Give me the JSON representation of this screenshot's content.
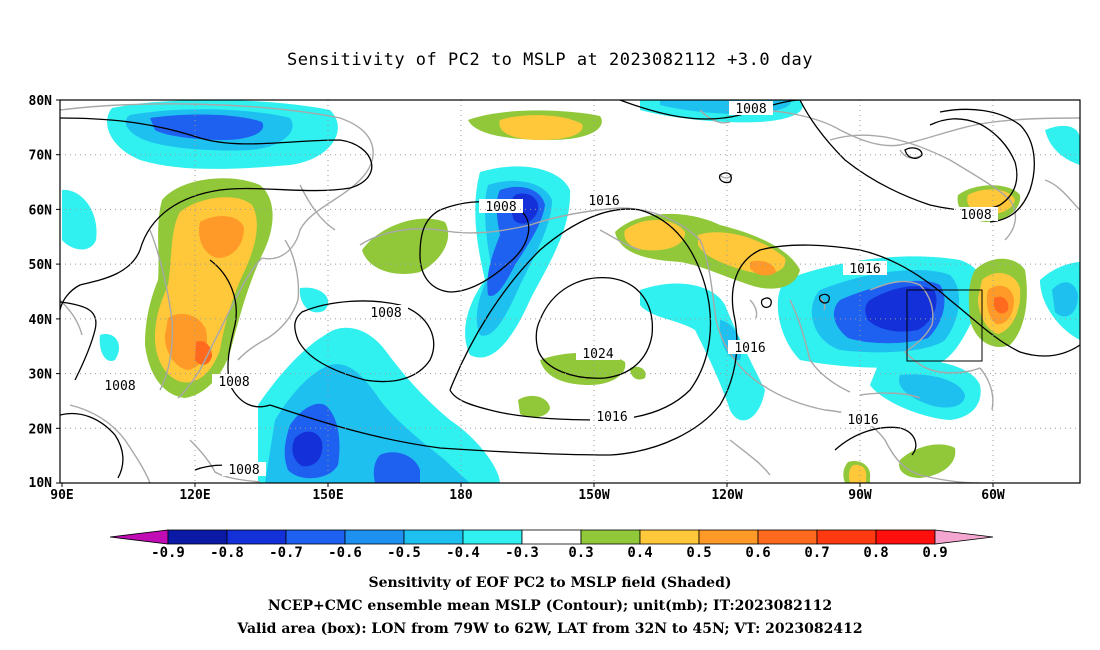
{
  "title": "Sensitivity of PC2 to MSLP at 2023082112 +3.0 day",
  "lat_labels": [
    "80N",
    "70N",
    "60N",
    "50N",
    "40N",
    "30N",
    "20N",
    "10N"
  ],
  "lon_labels": [
    "90E",
    "120E",
    "150E",
    "180",
    "150W",
    "120W",
    "90W",
    "60W"
  ],
  "contour_labels": [
    "1008",
    "1016",
    "1008",
    "1008",
    "1016",
    "1024",
    "1008",
    "1016",
    "1008",
    "1008",
    "1016",
    "1008"
  ],
  "colorbar": {
    "labels": [
      "-0.9",
      "-0.8",
      "-0.7",
      "-0.6",
      "-0.5",
      "-0.4",
      "-0.3",
      "0.3",
      "0.4",
      "0.5",
      "0.6",
      "0.7",
      "0.8",
      "0.9"
    ],
    "colors": [
      "#c00cb4",
      "#0a1aa6",
      "#1430d8",
      "#1e60f0",
      "#1e90f0",
      "#1ec0f0",
      "#30f0f0",
      "#ffffff",
      "#90c83a",
      "#ffc83a",
      "#ff9a28",
      "#ff6a1e",
      "#ff3a10",
      "#ff0e0e",
      "#f4a6d0"
    ]
  },
  "caption": {
    "line1": "Sensitivity of EOF PC2 to MSLP field (Shaded)",
    "line2": "NCEP+CMC ensemble mean MSLP (Contour); unit(mb); IT:2023082112",
    "line3": "Valid area (box): LON from 79W to 62W, LAT from 32N to 45N; VT: 2023082412"
  }
}
